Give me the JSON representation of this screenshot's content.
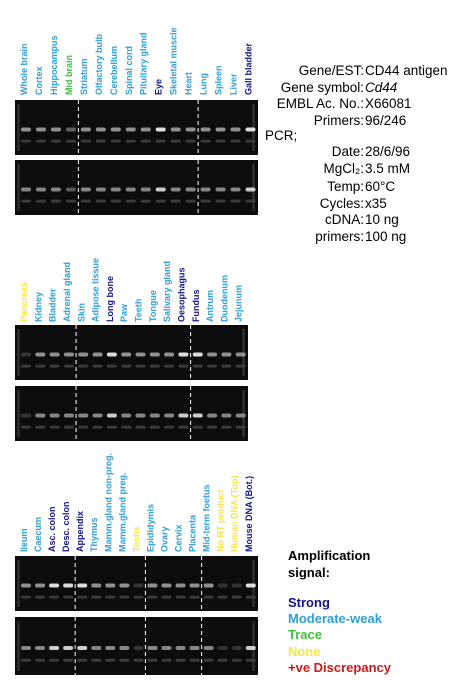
{
  "info": {
    "rows": [
      {
        "label": "Gene/EST:",
        "value": "CD44 antigen"
      },
      {
        "label": "Gene symbol:",
        "value": "Cd44",
        "italic": true
      },
      {
        "label": "EMBL Ac. No.:",
        "value": "X66081"
      },
      {
        "label": "Primers:",
        "value": "96/246"
      },
      {
        "label": "PCR;"
      },
      {
        "label": "Date:",
        "value": "28/6/96"
      },
      {
        "label": "MgCl₂:",
        "value": "3.5 mM"
      },
      {
        "label": "Temp:",
        "value": "60°C"
      },
      {
        "label": "Cycles:",
        "value": "x35"
      },
      {
        "label": "cDNA:",
        "value": "10 ng"
      },
      {
        "label": "primers:",
        "value": "100 ng"
      }
    ]
  },
  "panels": [
    {
      "lanes": [
        {
          "label": "Whole brain",
          "signal": "moderate"
        },
        {
          "label": "Cortex",
          "signal": "moderate"
        },
        {
          "label": "Hippocampus",
          "signal": "moderate"
        },
        {
          "label": "Mid brain",
          "signal": "trace"
        },
        {
          "label": "Striatum",
          "signal": "moderate"
        },
        {
          "label": "Olfactory bulb",
          "signal": "moderate"
        },
        {
          "label": "Cerebellum",
          "signal": "moderate"
        },
        {
          "label": "Spinal cord",
          "signal": "moderate"
        },
        {
          "label": "Pituitary gland",
          "signal": "moderate"
        },
        {
          "label": "Eye",
          "signal": "strong"
        },
        {
          "label": "Skeletal muscle",
          "signal": "moderate"
        },
        {
          "label": "Heart",
          "signal": "moderate"
        },
        {
          "label": "Lung",
          "signal": "moderate"
        },
        {
          "label": "Spleen",
          "signal": "moderate"
        },
        {
          "label": "Liver",
          "signal": "moderate"
        },
        {
          "label": "Gall bladder",
          "signal": "strong"
        }
      ]
    },
    {
      "lanes": [
        {
          "label": "Pancreas",
          "signal": "none"
        },
        {
          "label": "Kidney",
          "signal": "moderate"
        },
        {
          "label": "Bladder",
          "signal": "moderate"
        },
        {
          "label": "Adrenal gland",
          "signal": "moderate"
        },
        {
          "label": "Skin",
          "signal": "moderate"
        },
        {
          "label": "Adipose tissue",
          "signal": "moderate"
        },
        {
          "label": "Long bone",
          "signal": "strong"
        },
        {
          "label": "Paw",
          "signal": "moderate"
        },
        {
          "label": "Teeth",
          "signal": "moderate"
        },
        {
          "label": "Tongue",
          "signal": "moderate"
        },
        {
          "label": "Salivary gland",
          "signal": "moderate"
        },
        {
          "label": "Oesophagus",
          "signal": "strong"
        },
        {
          "label": "Fundus",
          "signal": "strong"
        },
        {
          "label": "Antrum",
          "signal": "moderate"
        },
        {
          "label": "Duodenum",
          "signal": "moderate"
        },
        {
          "label": "Jejunum",
          "signal": "moderate"
        }
      ]
    },
    {
      "lanes": [
        {
          "label": "Ileum",
          "signal": "moderate"
        },
        {
          "label": "Caecum",
          "signal": "moderate"
        },
        {
          "label": "Asc. colon",
          "signal": "strong"
        },
        {
          "label": "Desc. colon",
          "signal": "strong"
        },
        {
          "label": "Appendix",
          "signal": "strong"
        },
        {
          "label": "Thymus",
          "signal": "moderate"
        },
        {
          "label": "Mamm.gland non-preg.",
          "signal": "moderate"
        },
        {
          "label": "Mamm.gland preg.",
          "signal": "moderate"
        },
        {
          "label": "Testis",
          "signal": "none"
        },
        {
          "label": "Epididymis",
          "signal": "moderate"
        },
        {
          "label": "Ovary",
          "signal": "moderate"
        },
        {
          "label": "Cervix",
          "signal": "moderate"
        },
        {
          "label": "Placenta",
          "signal": "moderate"
        },
        {
          "label": "Mid-term foetus",
          "signal": "moderate"
        },
        {
          "label": "No RT product",
          "signal": "none"
        },
        {
          "label": "Human DNA (Top)",
          "signal": "none"
        },
        {
          "label": "Mouse DNA (Bot.)",
          "signal": "strong"
        }
      ]
    }
  ],
  "legend": {
    "title": "Amplification signal:",
    "items": [
      {
        "key": "strong",
        "label": "Strong",
        "color": "#14148c"
      },
      {
        "key": "moderate",
        "label": "Moderate-weak",
        "color": "#2f9fd6"
      },
      {
        "key": "trace",
        "label": "Trace",
        "color": "#3cc43c"
      },
      {
        "key": "none",
        "label": "None",
        "color": "#f5e642"
      },
      {
        "key": "discrepancy",
        "label": "+ve Discrepancy",
        "color": "#cc1a1a"
      }
    ]
  }
}
